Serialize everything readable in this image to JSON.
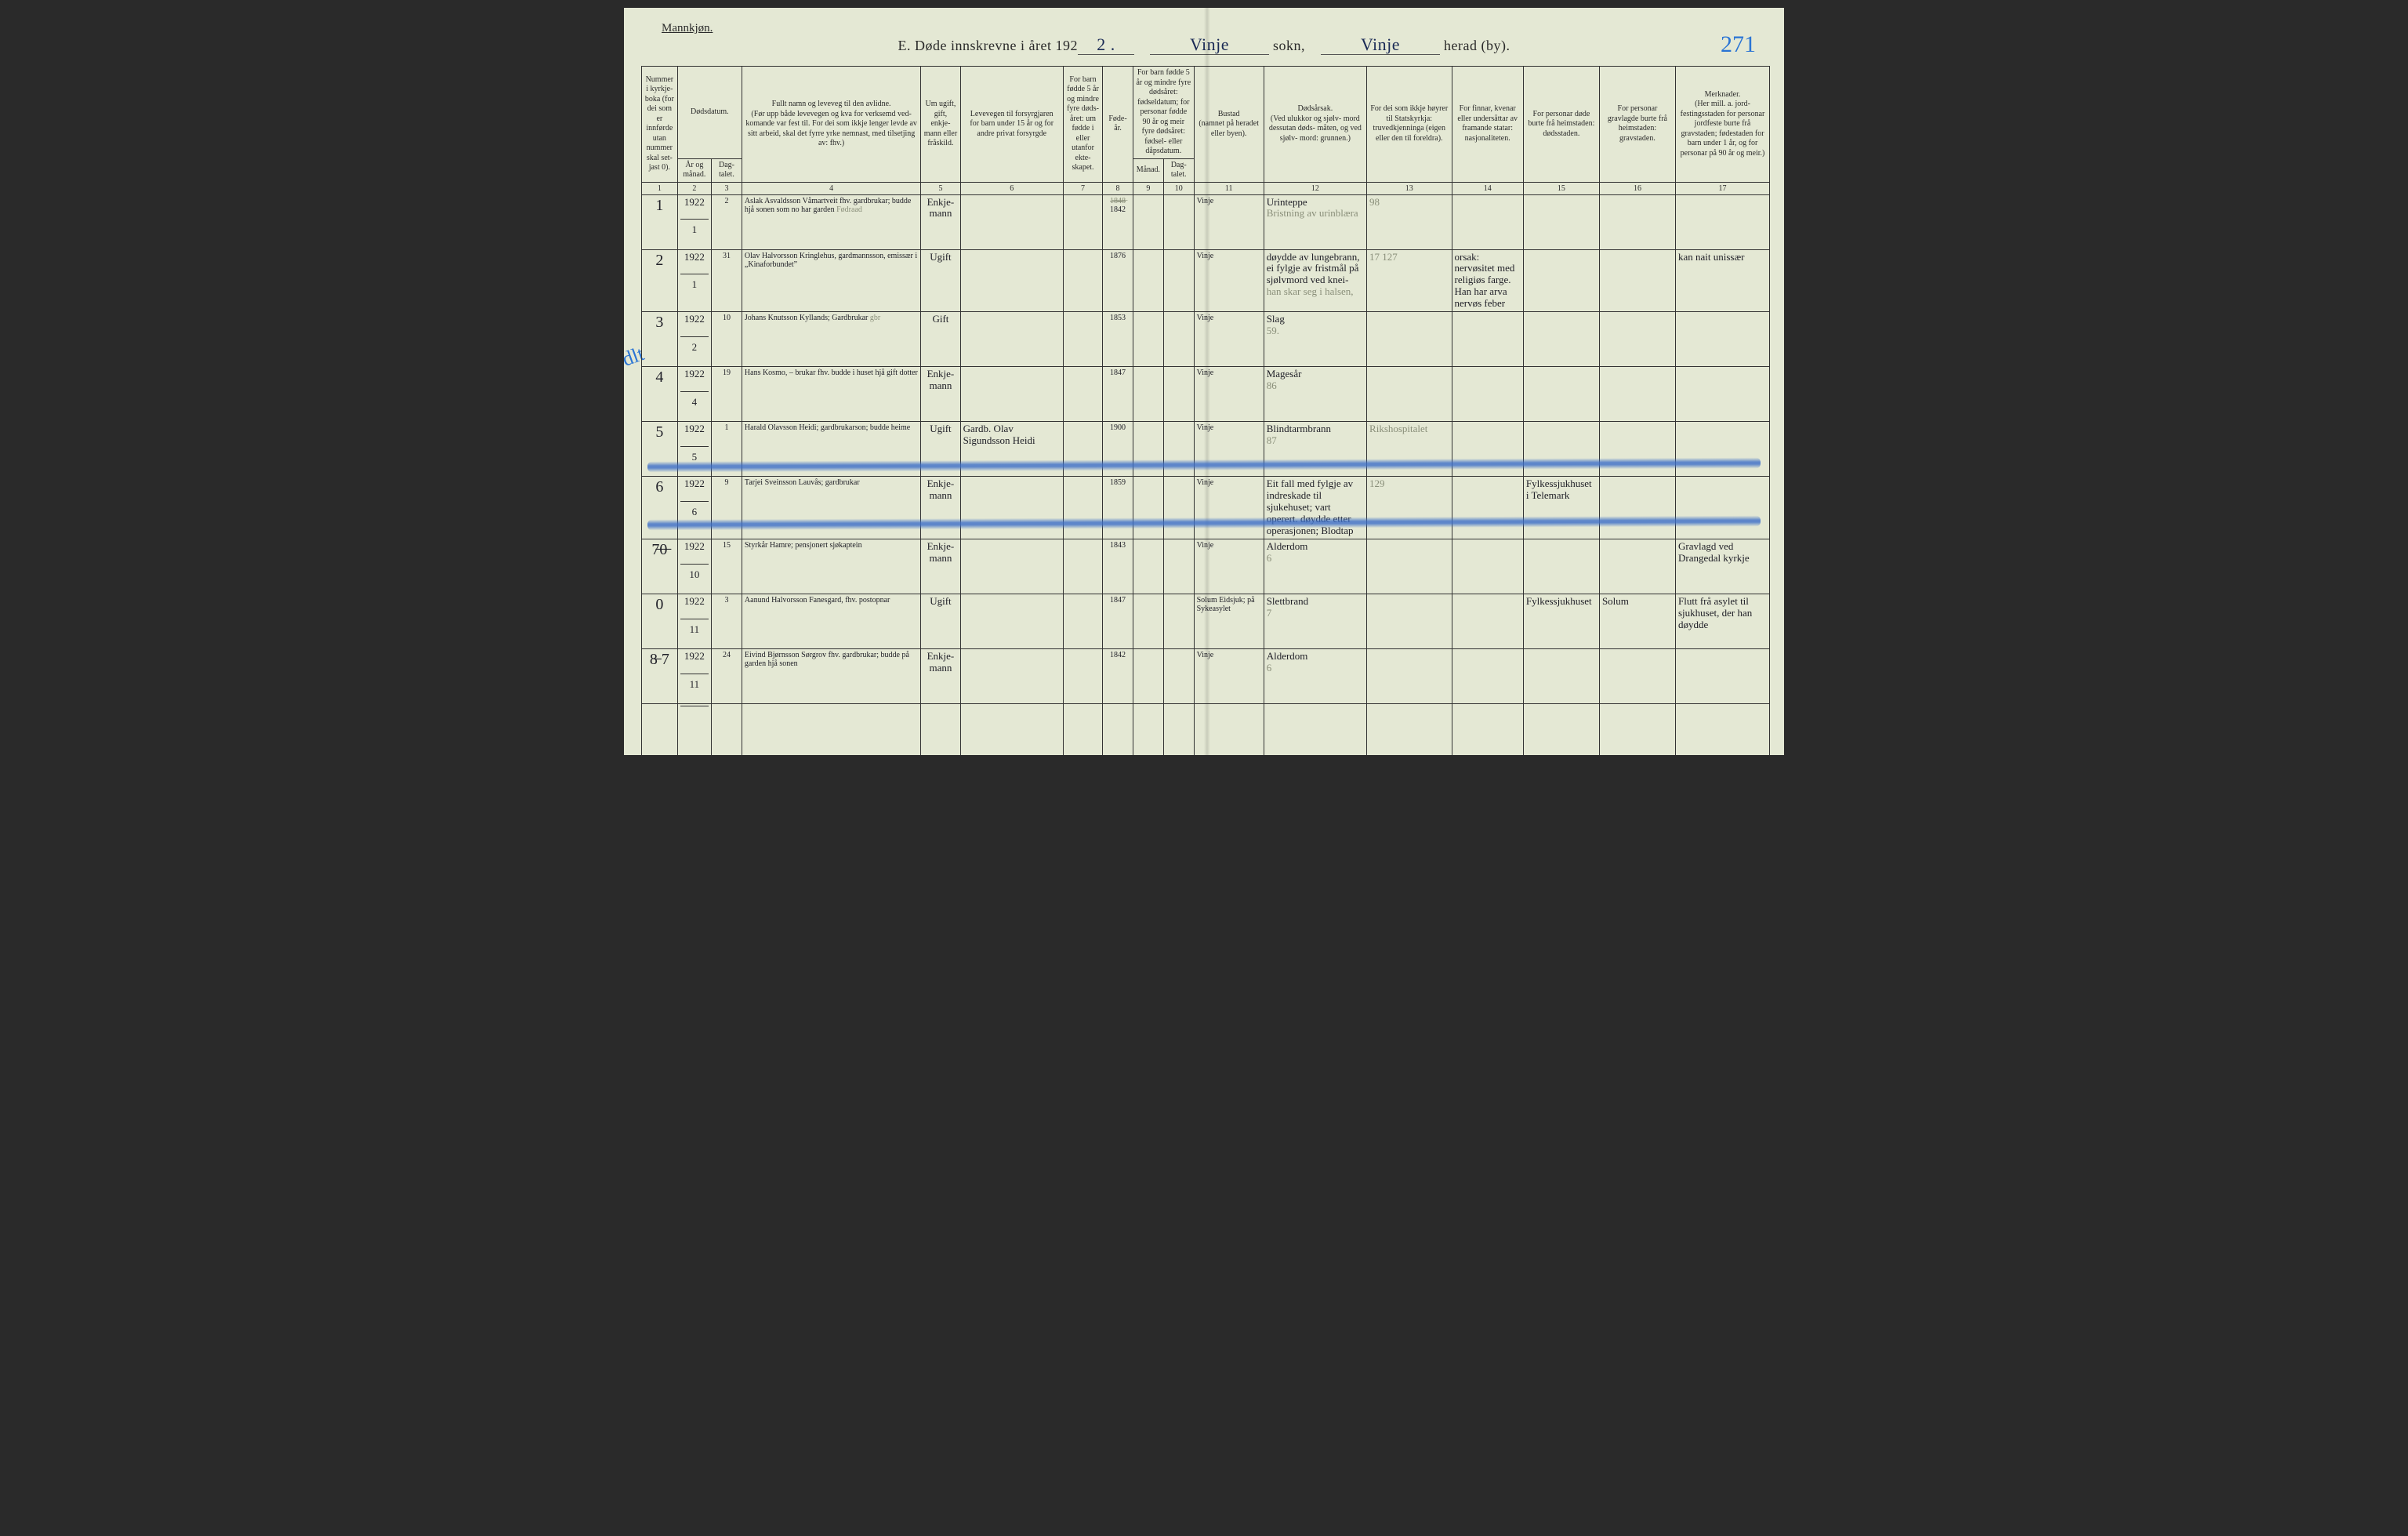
{
  "labels": {
    "gender": "Mannkjøn.",
    "title_prefix": "E.   Døde innskrevne i året 192",
    "year_suffix": "2 .",
    "sokn_label": "sokn,",
    "herad_label": "herad (by).",
    "sokn_value": "Vinje",
    "herad_value": "Vinje",
    "page_number": "271"
  },
  "columns": {
    "c1": "Nummer i kyrkje- boka (for dei som er innførde utan nummer skal set- jast 0).",
    "c_dods": "Dødsdatum.",
    "c2": "År og månad.",
    "c3": "Dag- talet.",
    "c4": "Fullt namn og leveveg til den avlidne.\n(Før upp både levevegen og kva for verksemd ved- komande var fest til. For dei som ikkje lenger levde av sitt arbeid, skal det fyrre yrke nemnast, med tilsetjing av: fhv.)",
    "c5": "Um ugift, gift, enkje- mann eller fråskild.",
    "c6": "Levevegen til forsyrgjaren\nfor barn under 15 år og for andre privat forsyrgde",
    "c7": "For barn fødde 5 år og mindre fyre døds- året: um fødde i eller utanfor ekte- skapet.",
    "c8": "Føde- år.",
    "c_barn": "For barn fødde 5 år og mindre fyre dødsåret: fødseldatum; for personar fødde 90 år og meir fyre dødsåret: fødsel- eller dåpsdatum.",
    "c9": "Månad.",
    "c10": "Dag- talet.",
    "c11": "Bustad\n(namnet på heradet eller byen).",
    "c12": "Dødsårsak.\n(Ved ulukkor og sjølv- mord dessutan døds- måten, og ved sjølv- mord: grunnen.)",
    "c13": "For dei som ikkje høyrer til Statskyrkja: truvedkjenninga (eigen eller den til foreldra).",
    "c14": "For finnar, kvenar eller undersåttar av framande statar: nasjonaliteten.",
    "c15": "For personar døde burte frå heimstaden: dødsstaden.",
    "c16": "For personar gravlagde burte frå heimstaden: gravstaden.",
    "c17": "Merknader.\n(Her mill. a. jord- festingsstaden for personar jordfeste burte frå gravstaden; fødestaden for barn under 1 år, og for personar på 90 år og meir.)"
  },
  "colnums": [
    "1",
    "2",
    "3",
    "4",
    "5",
    "6",
    "7",
    "8",
    "9",
    "10",
    "11",
    "12",
    "13",
    "14",
    "15",
    "16",
    "17"
  ],
  "rows": [
    {
      "num": "1",
      "year": "1922",
      "month": "1",
      "day": "2",
      "name": "Aslak Asvaldsson Våmartveit fhv. gardbrukar; budde hjå sonen som no har garden",
      "name_ghost": "Fødraad",
      "status": "Enkje- mann",
      "provider": "",
      "wedlock": "",
      "birth": "1842",
      "birth_extra": "1̶8̶4̶8̶",
      "place": "Vinje",
      "cause": "Urinteppe",
      "cause_ghost": "Bristning av urinblæra",
      "col13": "98",
      "col14": "",
      "col15": "",
      "col16": "",
      "col17": ""
    },
    {
      "num": "2",
      "year": "1922",
      "month": "1",
      "day": "31",
      "name": "Olav Halvorsson Kringlehus, gardmannsson, emissær i „Kinaforbundet”",
      "status": "Ugift",
      "provider": "",
      "wedlock": "",
      "birth": "1876",
      "place": "Vinje",
      "cause": "døydde av lungebrann, ei fylgje av fristmål på sjølvmord ved knei-",
      "cause_ghost": "han skar seg i halsen,",
      "col13": "17  127",
      "col14": "orsak: nervøsitet med religiøs farge. Han har arva nervøs feber",
      "col15": "",
      "col16": "",
      "col17": "kan nait unissær"
    },
    {
      "num": "3",
      "year": "1922",
      "month": "2",
      "day": "10",
      "name": "Johans Knutsson Kyllands; Gardbrukar",
      "name_ghost": "gbr",
      "status": "Gift",
      "provider": "",
      "wedlock": "",
      "birth": "1853",
      "place": "Vinje",
      "cause": "Slag",
      "cause_ghost": "59.",
      "col13": "",
      "col14": "",
      "col15": "",
      "col16": "",
      "col17": ""
    },
    {
      "num": "4",
      "year": "1922",
      "month": "4",
      "day": "19",
      "name": "Hans Kosmo, – brukar fhv. budde i huset hjå gift dotter",
      "status": "Enkje- mann",
      "provider": "",
      "wedlock": "",
      "birth": "1847",
      "place": "Vinje",
      "cause": "Magesår",
      "cause_ghost": "86",
      "col13": "",
      "col14": "",
      "col15": "",
      "col16": "",
      "col17": ""
    },
    {
      "num": "5",
      "num_ghost": "dlt",
      "year": "1922",
      "month": "5",
      "day": "1",
      "name": "Harald Olavsson Heidi; gardbrukarson; budde heime",
      "status": "Ugift",
      "provider": "Gardb. Olav Sigundsson Heidi",
      "wedlock": "",
      "birth": "1900",
      "place": "Vinje",
      "cause": "Blindtarmbrann",
      "cause_ghost": "87",
      "col13": "Rikshospitalet",
      "col14": "",
      "col15": "",
      "col16": "",
      "col17": ""
    },
    {
      "num": "6",
      "year": "1922",
      "month": "6",
      "day": "9",
      "name": "Tarjei Sveinsson Lauvås; gardbrukar",
      "status": "Enkje- mann",
      "provider": "",
      "wedlock": "",
      "birth": "1859",
      "place": "Vinje",
      "cause": "Eit fall med fylgje av indreskade til sjukehuset; vart operert. døydde etter operasjonen; Blodtap",
      "col13": "129",
      "col14": "",
      "col15": "Fylkessjukhuset i Telemark",
      "col16": "",
      "col17": ""
    },
    {
      "num": "7̶0̶",
      "year": "1922",
      "month": "10",
      "day": "15",
      "name": "Styrkår Hamre; pensjonert sjøkaptein",
      "status": "Enkje- mann",
      "provider": "",
      "wedlock": "",
      "birth": "1843",
      "place": "Vinje",
      "cause": "Alderdom",
      "cause_ghost": "6",
      "col13": "",
      "col14": "",
      "col15": "",
      "col16": "",
      "col17": "Gravlagd ved Drangedal kyrkje"
    },
    {
      "num": "0",
      "year": "1922",
      "month": "11",
      "day": "3",
      "name": "Aanund Halvorsson Fanesgard, fhv. postopnar",
      "status": "Ugift",
      "provider": "",
      "wedlock": "",
      "birth": "1847",
      "place": "Solum Eidsjuk; på Sykeasylet",
      "cause": "Slettbrand",
      "cause_ghost": "7",
      "col13": "",
      "col14": "",
      "col15": "Fylkessjukhuset",
      "col16": "Solum",
      "col17": "Flutt frå asylet til sjukhuset, der han døydde"
    },
    {
      "num": "8̶ 7",
      "year": "1922",
      "month": "11",
      "day": "24",
      "name": "Eivind Bjørnsson Sørgrov fhv. gardbrukar; budde på garden hjå sonen",
      "status": "Enkje- mann",
      "provider": "",
      "wedlock": "",
      "birth": "1842",
      "place": "Vinje",
      "cause": "Alderdom",
      "cause_ghost": "6",
      "col13": "",
      "col14": "",
      "col15": "",
      "col16": "",
      "col17": ""
    }
  ],
  "style": {
    "paper_color": "#e4e8d4",
    "ink_color": "#2a2a2a",
    "hand_ink": "#202028",
    "blue_ink": "#2a74d4",
    "ghost_ink": "#8a8f7a",
    "rule_color": "#333333",
    "title_fontsize_pt": 14,
    "header_fontsize_pt": 8,
    "hand_fontsize_pt": 12
  }
}
